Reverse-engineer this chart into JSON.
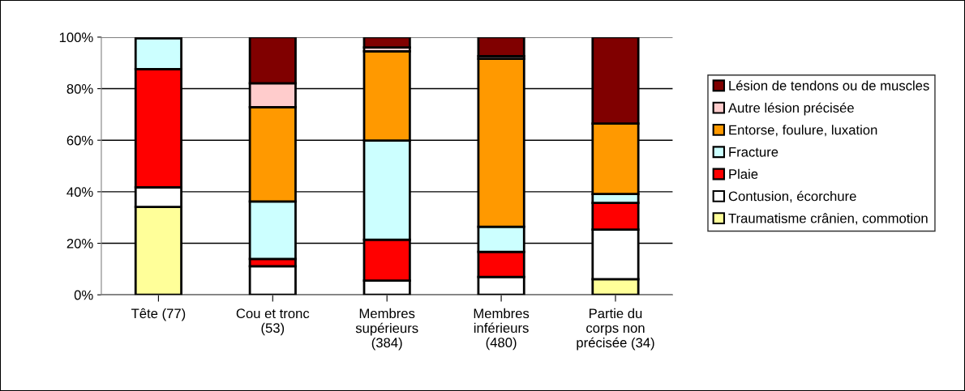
{
  "chart_data": {
    "type": "bar",
    "stacked": true,
    "categories": [
      "Tête (77)",
      "Cou et tronc\n(53)",
      "Membres\nsupérieurs\n(384)",
      "Membres\ninférieurs\n(480)",
      "Partie du\ncorps non\nprécisée (34)"
    ],
    "series": [
      {
        "name": "Traumatisme crânien, commotion",
        "color": "#ffff99",
        "values": [
          34.1,
          null,
          null,
          null,
          6.1
        ]
      },
      {
        "name": "Contusion, écorchure",
        "color": "#ffffff",
        "values": [
          7.6,
          11.1,
          5.5,
          6.9,
          19.2
        ]
      },
      {
        "name": "Plaie",
        "color": "#ff0000",
        "values": [
          45.9,
          2.8,
          15.9,
          9.8,
          10.4
        ]
      },
      {
        "name": "Fracture",
        "color": "#ccffff",
        "values": [
          11.9,
          22.3,
          38.5,
          9.7,
          3.4
        ]
      },
      {
        "name": "Entorse, foulure, luxation",
        "color": "#ff9900",
        "values": [
          null,
          36.6,
          34.6,
          65.2,
          27.4
        ]
      },
      {
        "name": "Autre lésion précisée",
        "color": "#ffcccc",
        "values": [
          null,
          9.3,
          1.5,
          1.0,
          null
        ]
      },
      {
        "name": "Lésion de tendons ou de muscles",
        "color": "#800000",
        "values": [
          null,
          17.9,
          4.0,
          7.4,
          33.5
        ]
      }
    ],
    "ylim": [
      0,
      100
    ],
    "yticks": [
      {
        "value": 0,
        "label": "0%"
      },
      {
        "value": 20,
        "label": "20%"
      },
      {
        "value": 40,
        "label": "40%"
      },
      {
        "value": 60,
        "label": "60%"
      },
      {
        "value": 80,
        "label": "80%"
      },
      {
        "value": 100,
        "label": "100%"
      }
    ],
    "grid": "y",
    "legend": "right"
  }
}
